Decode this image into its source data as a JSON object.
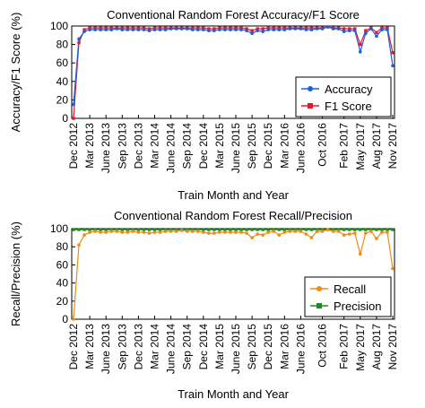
{
  "chart_data": [
    {
      "type": "line",
      "title": "Conventional Random Forest Accuracy/F1 Score",
      "xlabel": "Train Month and Year",
      "ylabel": "Accuracy/F1 Score (%)",
      "ylim": [
        0,
        100
      ],
      "yticks": [
        0,
        20,
        40,
        60,
        80,
        100
      ],
      "legend_position": "bottom-right",
      "x_tick_labels": [
        "Dec 2012",
        "Mar 2013",
        "June 2013",
        "Sep 2013",
        "Dec 2013",
        "Mar 2014",
        "June 2014",
        "Sep 2014",
        "Dec 2014",
        "Mar 2015",
        "June 2015",
        "Sep 2015",
        "Dec 2015",
        "Mar 2016",
        "June 2016",
        "Oct 2016",
        "Feb 2017",
        "May 2017",
        "Aug 2017",
        "Nov 2017"
      ],
      "x_tick_index": [
        0,
        3,
        6,
        9,
        12,
        15,
        18,
        21,
        24,
        27,
        30,
        33,
        36,
        39,
        42,
        46,
        50,
        53,
        56,
        59
      ],
      "n_points": 60,
      "series": [
        {
          "name": "Accuracy",
          "color": "#1f5fd6",
          "marker": "circle",
          "values": [
            15,
            86,
            94,
            96,
            96,
            96,
            96,
            96,
            97,
            96,
            96,
            96,
            96,
            96,
            95,
            96,
            96,
            96,
            97,
            97,
            97,
            97,
            96,
            96,
            96,
            95,
            95,
            96,
            96,
            96,
            96,
            96,
            95,
            92,
            95,
            94,
            96,
            96,
            96,
            96,
            97,
            97,
            97,
            96,
            96,
            97,
            97,
            99,
            97,
            97,
            94,
            95,
            95,
            72,
            92,
            97,
            89,
            96,
            96,
            57
          ]
        },
        {
          "name": "F1 Score",
          "color": "#e8182b",
          "marker": "square",
          "values": [
            0,
            82,
            96,
            98,
            98,
            98,
            98,
            98,
            98,
            98,
            98,
            98,
            98,
            98,
            97,
            98,
            98,
            98,
            98,
            98,
            98,
            98,
            98,
            98,
            98,
            97,
            97,
            98,
            98,
            98,
            98,
            98,
            97,
            95,
            97,
            97,
            98,
            98,
            98,
            98,
            98,
            98,
            98,
            98,
            98,
            98,
            98,
            99,
            98,
            98,
            97,
            97,
            97,
            80,
            95,
            98,
            93,
            98,
            98,
            71
          ]
        }
      ]
    },
    {
      "type": "line",
      "title": "Conventional Random Forest Recall/Precision",
      "xlabel": "Train Month and Year",
      "ylabel": "Recall/Precision (%)",
      "ylim": [
        0,
        100
      ],
      "yticks": [
        0,
        20,
        40,
        60,
        80,
        100
      ],
      "legend_position": "bottom-right",
      "x_tick_labels": [
        "Dec 2012",
        "Mar 2013",
        "June 2013",
        "Sep 2013",
        "Dec 2013",
        "Mar 2014",
        "June 2014",
        "Sep 2014",
        "Dec 2014",
        "Mar 2015",
        "June 2015",
        "Sep 2015",
        "Dec 2015",
        "Mar 2016",
        "June 2016",
        "Oct 2016",
        "Feb 2017",
        "May 2017",
        "Aug 2017",
        "Nov 2017"
      ],
      "x_tick_index": [
        0,
        3,
        6,
        9,
        12,
        15,
        18,
        21,
        24,
        27,
        30,
        33,
        36,
        39,
        42,
        46,
        50,
        53,
        56,
        59
      ],
      "n_points": 60,
      "series": [
        {
          "name": "Recall",
          "color": "#f08a16",
          "marker": "circle",
          "values": [
            0,
            82,
            93,
            96,
            97,
            96,
            96,
            97,
            97,
            96,
            96,
            97,
            96,
            96,
            95,
            96,
            96,
            97,
            97,
            97,
            98,
            97,
            97,
            97,
            96,
            95,
            95,
            96,
            96,
            96,
            96,
            96,
            95,
            90,
            94,
            93,
            96,
            97,
            93,
            96,
            97,
            97,
            97,
            94,
            90,
            97,
            97,
            99,
            97,
            97,
            93,
            94,
            95,
            72,
            95,
            97,
            89,
            96,
            96,
            56
          ]
        },
        {
          "name": "Precision",
          "color": "#1f8a1f",
          "marker": "square",
          "values": [
            99,
            99,
            99,
            99,
            99,
            99,
            99,
            99,
            99,
            99,
            99,
            99,
            99,
            99,
            99,
            99,
            99,
            99,
            99,
            99,
            99,
            99,
            99,
            99,
            99,
            99,
            99,
            99,
            99,
            99,
            99,
            99,
            99,
            99,
            99,
            99,
            99,
            99,
            99,
            99,
            99,
            99,
            99,
            99,
            99,
            99,
            99,
            99,
            99,
            99,
            99,
            99,
            99,
            99,
            99,
            99,
            99,
            99,
            99,
            99
          ]
        }
      ]
    }
  ]
}
